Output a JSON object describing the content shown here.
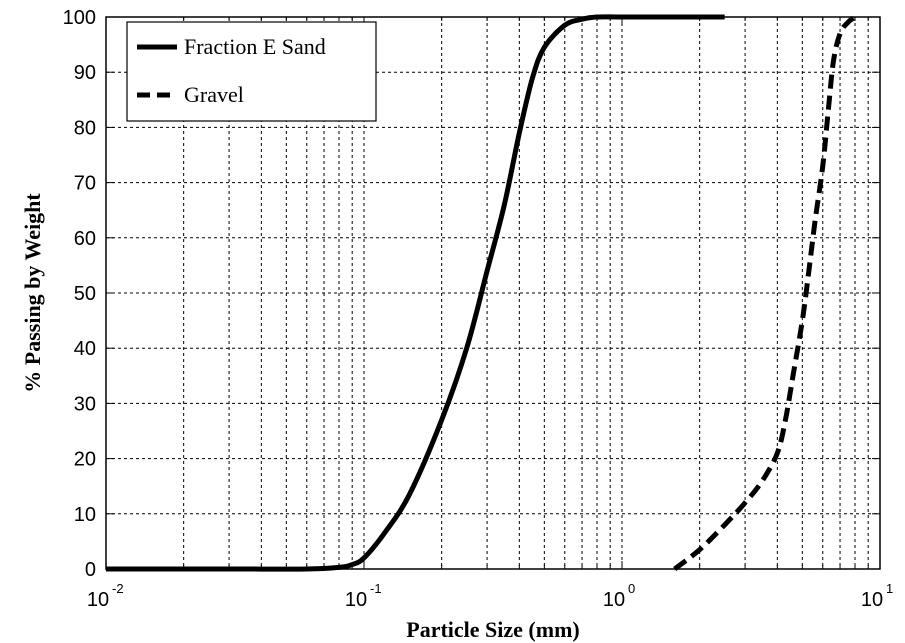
{
  "chart_data": {
    "type": "line",
    "xlabel": "Particle Size (mm)",
    "ylabel": "% Passing by Weight",
    "xscale": "log",
    "xlim": [
      0.01,
      10
    ],
    "ylim": [
      0,
      100
    ],
    "grid": true,
    "legend_position": "top-left",
    "x_ticks": [
      {
        "base": "10",
        "exp": "-2",
        "value": 0.01
      },
      {
        "base": "10",
        "exp": "-1",
        "value": 0.1
      },
      {
        "base": "10",
        "exp": "0",
        "value": 1
      },
      {
        "base": "10",
        "exp": "1",
        "value": 10
      }
    ],
    "y_ticks": [
      "0",
      "10",
      "20",
      "30",
      "40",
      "50",
      "60",
      "70",
      "80",
      "90",
      "100"
    ],
    "series": [
      {
        "name": "Fraction E Sand",
        "style": "solid",
        "color": "#000000",
        "x": [
          0.01,
          0.03,
          0.06,
          0.08,
          0.09,
          0.1,
          0.12,
          0.15,
          0.2,
          0.25,
          0.3,
          0.35,
          0.4,
          0.45,
          0.5,
          0.6,
          0.7,
          0.8,
          1.0,
          1.5,
          2.0,
          2.5
        ],
        "y": [
          0,
          0,
          0,
          0.3,
          0.8,
          2,
          6.5,
          13.5,
          27,
          40,
          54,
          66,
          79,
          89,
          94.5,
          98.5,
          99.6,
          100,
          100,
          100,
          100,
          100
        ]
      },
      {
        "name": "Gravel",
        "style": "dashed",
        "color": "#000000",
        "x": [
          1.6,
          2.0,
          2.5,
          3.0,
          3.5,
          4.0,
          4.3,
          4.6,
          5.0,
          5.3,
          5.6,
          6.0,
          6.3,
          6.6,
          7.0,
          7.5,
          8.0
        ],
        "y": [
          0,
          3.5,
          8,
          12,
          16,
          21,
          27,
          35,
          45,
          54,
          63,
          73,
          83,
          92,
          97,
          99,
          100
        ]
      }
    ]
  }
}
